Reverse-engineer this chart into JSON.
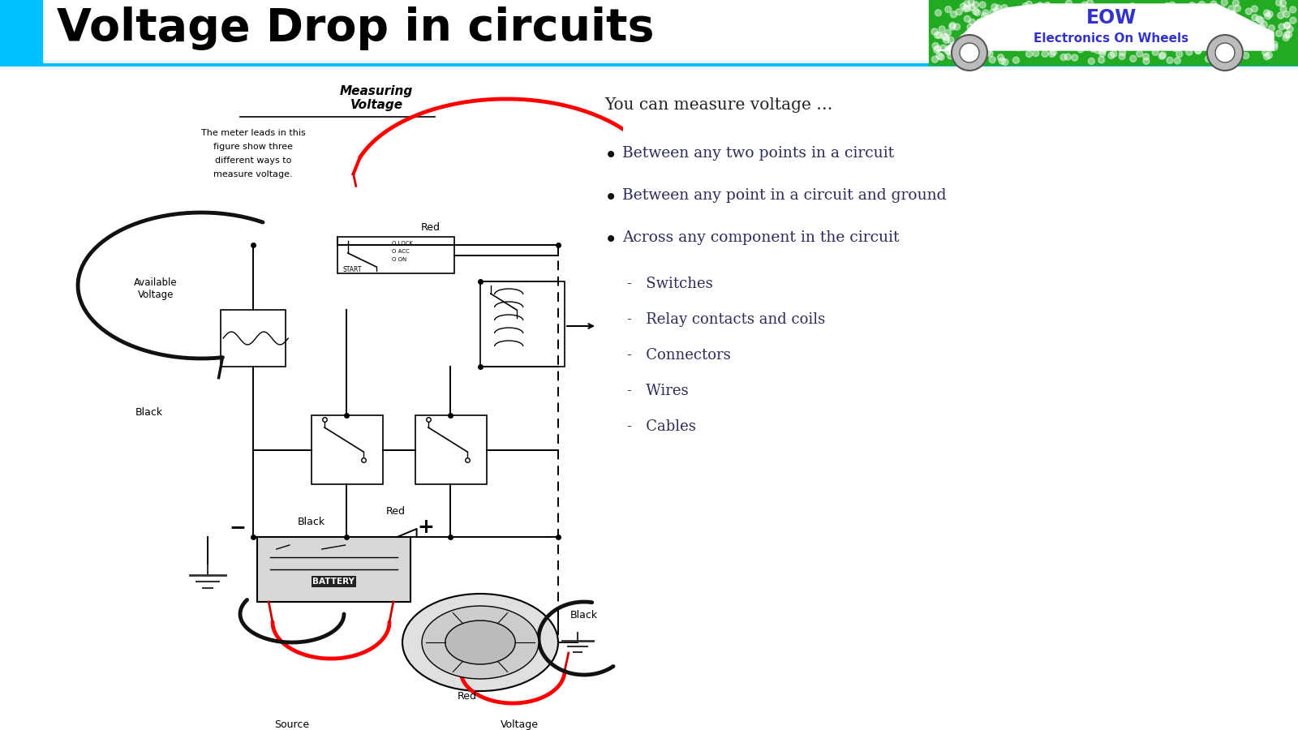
{
  "title": "Voltage Drop in circuits",
  "title_color": "#000000",
  "title_fontsize": 40,
  "title_bold": true,
  "bg_color": "#ffffff",
  "header_bar_color": "#00BFFF",
  "header_line_color": "#00BFFF",
  "logo_bg_color": "#22AA22",
  "logo_text1": "EOW",
  "logo_text2": "Electronics On Wheels",
  "logo_text_color": "#3333CC",
  "intro_text": "You can measure voltage …",
  "bullet_points": [
    "Between any two points in a circuit",
    "Between any point in a circuit and ground",
    "Across any component in the circuit"
  ],
  "sub_bullets": [
    "Switches",
    "Relay contacts and coils",
    "Connectors",
    "Wires",
    "Cables"
  ],
  "text_color": "#2C2C5A",
  "diagram_text_color": "#000000"
}
